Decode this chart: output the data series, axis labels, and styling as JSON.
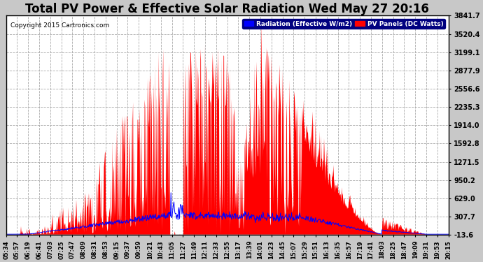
{
  "title": "Total PV Power & Effective Solar Radiation Wed May 27 20:16",
  "copyright": "Copyright 2015 Cartronics.com",
  "legend_labels": [
    "Radiation (Effective W/m2)",
    "PV Panels (DC Watts)"
  ],
  "y_ticks": [
    -13.6,
    307.7,
    629.0,
    950.2,
    1271.5,
    1592.8,
    1914.0,
    2235.3,
    2556.6,
    2877.9,
    3199.1,
    3520.4,
    3841.7
  ],
  "y_min": -13.6,
  "y_max": 3841.7,
  "background_color": "#c8c8c8",
  "plot_bg_color": "#ffffff",
  "grid_color": "#aaaaaa",
  "title_fontsize": 12,
  "x_label_fontsize": 6.0,
  "time_labels": [
    "05:34",
    "05:57",
    "06:19",
    "06:41",
    "07:03",
    "07:25",
    "07:47",
    "08:09",
    "08:31",
    "08:53",
    "09:15",
    "09:37",
    "09:59",
    "10:21",
    "10:43",
    "11:05",
    "11:27",
    "11:49",
    "12:11",
    "12:33",
    "12:55",
    "13:17",
    "13:39",
    "14:01",
    "14:23",
    "14:45",
    "15:07",
    "15:29",
    "15:51",
    "16:13",
    "16:35",
    "16:57",
    "17:19",
    "17:41",
    "18:03",
    "18:25",
    "18:47",
    "19:09",
    "19:31",
    "19:53",
    "20:15"
  ]
}
